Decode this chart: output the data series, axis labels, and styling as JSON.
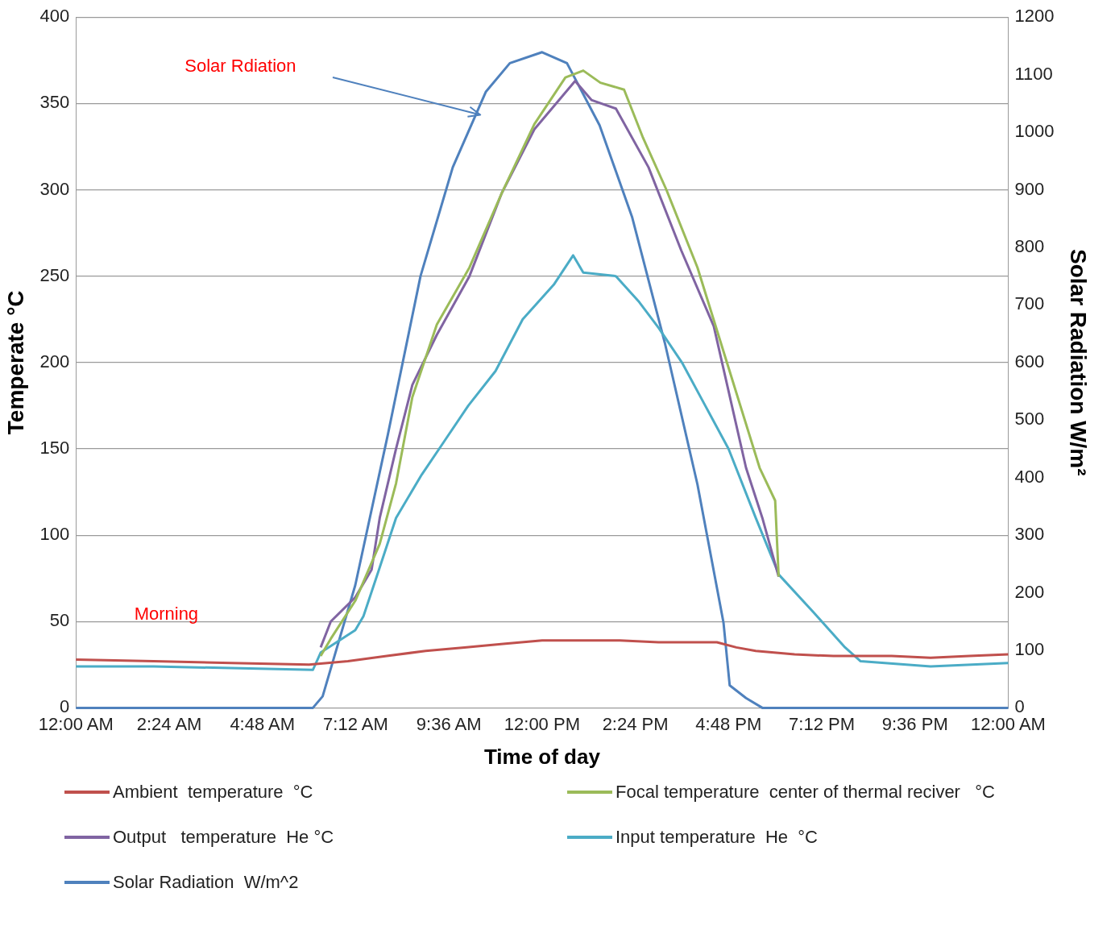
{
  "chart_data": {
    "type": "line",
    "xlabel": "Time of day",
    "ylabel": "Temperate °C",
    "y2label": "Solar Radiation W/m²",
    "xlim": [
      0,
      24
    ],
    "xticks": [
      {
        "value": 0,
        "label": "12:00 AM"
      },
      {
        "value": 2.4,
        "label": "2:24 AM"
      },
      {
        "value": 4.8,
        "label": "4:48 AM"
      },
      {
        "value": 7.2,
        "label": "7:12 AM"
      },
      {
        "value": 9.6,
        "label": "9:36 AM"
      },
      {
        "value": 12,
        "label": "12:00 PM"
      },
      {
        "value": 14.4,
        "label": "2:24 PM"
      },
      {
        "value": 16.8,
        "label": "4:48 PM"
      },
      {
        "value": 19.2,
        "label": "7:12 PM"
      },
      {
        "value": 21.6,
        "label": "9:36 PM"
      },
      {
        "value": 24,
        "label": "12:00 AM"
      }
    ],
    "ylim": [
      0,
      400
    ],
    "yticks": [
      0,
      50,
      100,
      150,
      200,
      250,
      300,
      350,
      400
    ],
    "y2lim": [
      0,
      1200
    ],
    "y2ticks": [
      0,
      100,
      200,
      300,
      400,
      500,
      600,
      700,
      800,
      900,
      1000,
      1100,
      1200
    ],
    "grid": "y",
    "legend": "bottom",
    "marker": "none",
    "line_style": "solid",
    "annotations": [
      "Solar Rdiation",
      "Morning"
    ],
    "series": [
      {
        "name": "Ambient  temperature  °C",
        "color": "#c0504d",
        "x": [
          0,
          2,
          4,
          6,
          7,
          8,
          9,
          10,
          11,
          12,
          13,
          14,
          15,
          16,
          16.5,
          17,
          17.5,
          18.5,
          19.5,
          21,
          22,
          23,
          24
        ],
        "values": [
          28,
          27,
          26,
          25,
          27,
          30,
          33,
          35,
          37,
          39,
          39,
          39,
          38,
          38,
          38,
          35,
          33,
          31,
          30,
          30,
          29,
          30,
          31
        ]
      },
      {
        "name": "Focal temperature  center of thermal reciver   °C",
        "color": "#9bbb59",
        "x": [
          6.3,
          6.56,
          7.19,
          7.82,
          8.24,
          8.66,
          9.29,
          10.13,
          10.96,
          11.8,
          12.6,
          13.06,
          13.5,
          14.11,
          14.6,
          15.2,
          16.0,
          16.8,
          17.6,
          18.0,
          18.09
        ],
        "values": [
          30,
          40,
          62,
          95,
          130,
          180,
          222,
          255,
          298,
          338,
          365,
          369,
          362,
          358,
          330,
          300,
          255,
          197,
          139,
          120,
          76
        ]
      },
      {
        "name": "Output   temperature  He °C",
        "color": "#8064a2",
        "x": [
          6.3,
          6.56,
          7.19,
          7.61,
          7.82,
          8.24,
          8.66,
          9.29,
          10.13,
          10.96,
          11.8,
          12.85,
          13.27,
          13.9,
          14.74,
          15.58,
          16.42,
          17.25,
          17.67,
          18.09
        ],
        "values": [
          35,
          50,
          64,
          80,
          110,
          150,
          187,
          216,
          250,
          298,
          335,
          363,
          352,
          347,
          313,
          265,
          221,
          139,
          110,
          76
        ]
      },
      {
        "name": "Input temperature  He  °C",
        "color": "#4bacc6",
        "x": [
          0,
          2,
          4,
          6.1,
          6.3,
          7.19,
          7.4,
          7.8,
          8.24,
          8.9,
          9.5,
          10.1,
          10.8,
          11.5,
          12.3,
          12.8,
          13.06,
          13.9,
          14.5,
          15.0,
          15.6,
          16.2,
          16.8,
          17.5,
          18.1,
          19.0,
          19.8,
          20.2,
          22,
          24
        ],
        "values": [
          24,
          24,
          23,
          22,
          32,
          45,
          53,
          80,
          110,
          135,
          155,
          175,
          195,
          225,
          245,
          262,
          252,
          250,
          235,
          220,
          200,
          175,
          150,
          110,
          77,
          55,
          35,
          27,
          24,
          26
        ]
      },
      {
        "name": "Solar Radiation  W/m^2",
        "color": "#4f81bd",
        "axis": "y2",
        "x": [
          0,
          6.1,
          6.35,
          7.19,
          8.03,
          8.87,
          9.7,
          10.55,
          11.17,
          12.0,
          12.64,
          13.48,
          14.32,
          15.16,
          16.0,
          16.67,
          16.83,
          17.25,
          17.67,
          24
        ],
        "values": [
          0,
          0,
          20,
          213,
          475,
          750,
          939,
          1070,
          1120,
          1139,
          1120,
          1012,
          852,
          634,
          388,
          148,
          39,
          17,
          0,
          0
        ]
      }
    ]
  }
}
